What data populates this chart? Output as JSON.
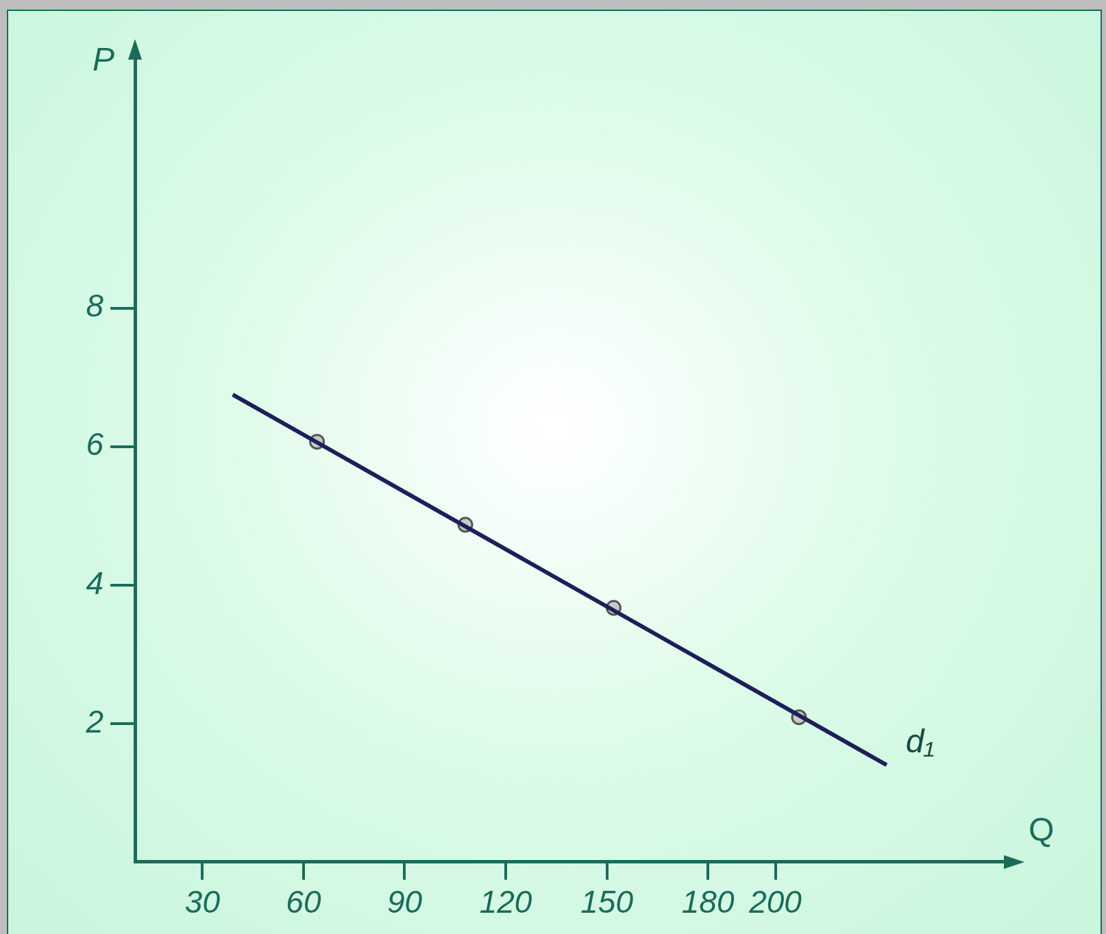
{
  "chart_data": {
    "type": "line",
    "xlabel": "Q",
    "ylabel": "P",
    "xlim": [
      10,
      268
    ],
    "ylim": [
      0,
      11.6
    ],
    "xticks": [
      30,
      60,
      90,
      120,
      150,
      180,
      200
    ],
    "yticks": [
      2,
      4,
      6,
      8
    ],
    "grid": false,
    "legend": false,
    "series": [
      {
        "name": "d₁",
        "color": "#1c1f5a",
        "marker": "none",
        "x": [
          39,
          233
        ],
        "values": [
          6.75,
          1.4
        ]
      },
      {
        "type": "scatter",
        "color": "#c8c8c8",
        "marker": "circle",
        "x": [
          64,
          108,
          152,
          207
        ],
        "values": [
          6.07,
          4.87,
          3.67,
          2.09
        ]
      }
    ]
  }
}
